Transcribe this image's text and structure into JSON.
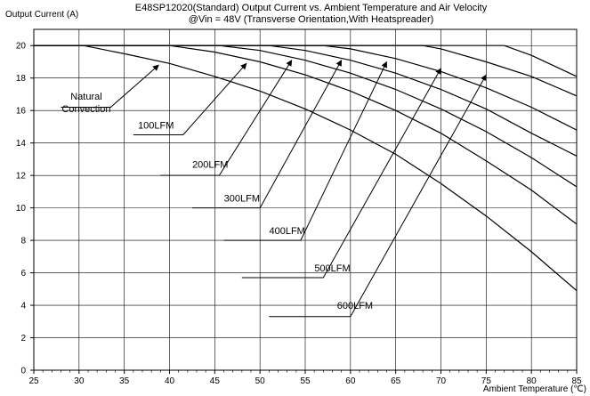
{
  "chart_data": {
    "type": "line",
    "title": "E48SP12020(Standard)  Output Current vs. Ambient Temperature and Air Velocity",
    "subtitle": "@Vin = 48V (Transverse Orientation,With Heatspreader)",
    "xlabel": "Ambient Temperature (℃)",
    "ylabel": "Output Current (A)",
    "xlim": [
      25,
      85
    ],
    "ylim": [
      0,
      21
    ],
    "x_ticks": [
      25,
      30,
      35,
      40,
      45,
      50,
      55,
      60,
      65,
      70,
      75,
      80,
      85
    ],
    "y_ticks": [
      0,
      2,
      4,
      6,
      8,
      10,
      12,
      14,
      16,
      18,
      20
    ],
    "grid": true,
    "series": [
      {
        "name": "Natural Convection",
        "x": [
          25,
          30.5,
          35,
          40,
          45,
          50,
          55,
          60,
          65,
          70,
          75,
          80,
          85
        ],
        "y": [
          20,
          20,
          19.5,
          18.9,
          18.1,
          17.2,
          16.1,
          14.8,
          13.3,
          11.5,
          9.5,
          7.3,
          4.9
        ]
      },
      {
        "name": "100LFM",
        "x": [
          25,
          40,
          45,
          50,
          55,
          60,
          65,
          70,
          75,
          80,
          85
        ],
        "y": [
          20,
          20,
          19.6,
          19.0,
          18.2,
          17.2,
          16.0,
          14.6,
          12.9,
          11.1,
          9.0
        ]
      },
      {
        "name": "200LFM",
        "x": [
          25,
          45.5,
          50,
          55,
          60,
          65,
          70,
          75,
          80,
          85
        ],
        "y": [
          20,
          20,
          19.7,
          19.1,
          18.3,
          17.3,
          16.1,
          14.7,
          13.1,
          11.3
        ]
      },
      {
        "name": "300LFM",
        "x": [
          25,
          51,
          55,
          60,
          65,
          70,
          75,
          80,
          85
        ],
        "y": [
          20,
          20,
          19.7,
          19.1,
          18.3,
          17.3,
          16.1,
          14.6,
          13.2
        ]
      },
      {
        "name": "400LFM",
        "x": [
          25,
          57,
          60,
          65,
          70,
          75,
          80,
          85
        ],
        "y": [
          20,
          20,
          19.8,
          19.2,
          18.4,
          17.4,
          16.2,
          14.8
        ]
      },
      {
        "name": "500LFM",
        "x": [
          25,
          68,
          70,
          75,
          80,
          85
        ],
        "y": [
          20,
          20,
          19.8,
          19.0,
          18.1,
          16.9
        ]
      },
      {
        "name": "600LFM",
        "x": [
          25,
          77,
          80,
          85
        ],
        "y": [
          20,
          20,
          19.4,
          18.1
        ]
      }
    ],
    "annotations": [
      {
        "lines": [
          "Natural",
          "Convection"
        ],
        "label_at": [
          30.8,
          16.9
        ],
        "leader": [
          [
            28,
            16.2
          ],
          [
            33.5,
            16.2
          ],
          [
            38.8,
            18.8
          ]
        ]
      },
      {
        "lines": [
          "100LFM"
        ],
        "label_at": [
          38.5,
          15.1
        ],
        "leader": [
          [
            36,
            14.5
          ],
          [
            41.5,
            14.5
          ],
          [
            48.5,
            18.9
          ]
        ]
      },
      {
        "lines": [
          "200LFM"
        ],
        "label_at": [
          44.5,
          12.7
        ],
        "leader": [
          [
            39,
            12.0
          ],
          [
            45.5,
            12.0
          ],
          [
            53.5,
            19.1
          ]
        ]
      },
      {
        "lines": [
          "300LFM"
        ],
        "label_at": [
          48,
          10.6
        ],
        "leader": [
          [
            42.5,
            10.0
          ],
          [
            50,
            10.0
          ],
          [
            59,
            19.1
          ]
        ]
      },
      {
        "lines": [
          "400LFM"
        ],
        "label_at": [
          53,
          8.6
        ],
        "leader": [
          [
            46,
            8.0
          ],
          [
            54.5,
            8.0
          ],
          [
            64,
            19.0
          ]
        ]
      },
      {
        "lines": [
          "500LFM"
        ],
        "label_at": [
          58,
          6.3
        ],
        "leader": [
          [
            48,
            5.7
          ],
          [
            57,
            5.7
          ],
          [
            70,
            18.6
          ]
        ]
      },
      {
        "lines": [
          "600LFM"
        ],
        "label_at": [
          60.5,
          4.0
        ],
        "leader": [
          [
            51,
            3.3
          ],
          [
            60,
            3.3
          ],
          [
            75,
            18.2
          ]
        ]
      }
    ]
  }
}
